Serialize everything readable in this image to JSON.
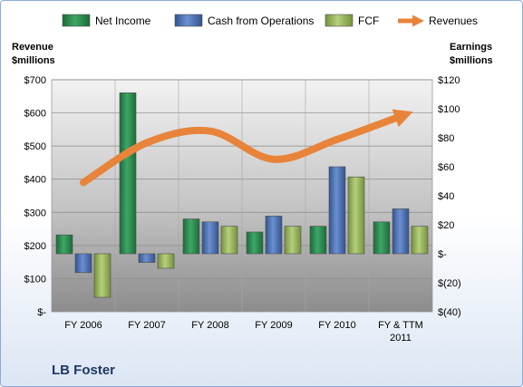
{
  "chart_data": {
    "type": "bar",
    "categories": [
      "FY 2006",
      "FY 2007",
      "FY 2008",
      "FY 2009",
      "FY 2010",
      "FY & TTM 2011"
    ],
    "series": [
      {
        "name": "Net Income",
        "axis": "right",
        "color": "#2e8b4f",
        "values": [
          13,
          111,
          24,
          15,
          19,
          22
        ]
      },
      {
        "name": "Cash from Operations",
        "axis": "right",
        "color": "#4a6fb5",
        "values": [
          -13,
          -6,
          22,
          26,
          60,
          31
        ]
      },
      {
        "name": "FCF",
        "axis": "right",
        "color": "#9bbb59",
        "values": [
          -30,
          -10,
          19,
          19,
          53,
          19
        ]
      },
      {
        "name": "Revenues",
        "axis": "left",
        "type": "line",
        "color": "#e8843a",
        "values": [
          390,
          510,
          545,
          460,
          520,
          590
        ]
      }
    ],
    "left_axis": {
      "title_lines": [
        "Revenue",
        "$millions"
      ],
      "range": [
        0,
        700
      ],
      "ticks": [
        0,
        100,
        200,
        300,
        400,
        500,
        600,
        700
      ],
      "tick_labels": [
        "$-",
        "$100",
        "$200",
        "$300",
        "$400",
        "$500",
        "$600",
        "$700"
      ]
    },
    "right_axis": {
      "title_lines": [
        "Earnings",
        "$millions"
      ],
      "range": [
        -40,
        120
      ],
      "ticks": [
        -40,
        -20,
        0,
        20,
        40,
        60,
        80,
        100,
        120
      ],
      "tick_labels": [
        "$(40)",
        "$(20)",
        "$-",
        "$20",
        "$40",
        "$60",
        "$80",
        "$100",
        "$120"
      ]
    },
    "category_labels": [
      [
        "FY 2006"
      ],
      [
        "FY 2007"
      ],
      [
        "FY 2008"
      ],
      [
        "FY 2009"
      ],
      [
        "FY 2010"
      ],
      [
        "FY & TTM",
        "2011"
      ]
    ],
    "legend_position": "top",
    "grid": true,
    "company_label": "LB Foster"
  }
}
